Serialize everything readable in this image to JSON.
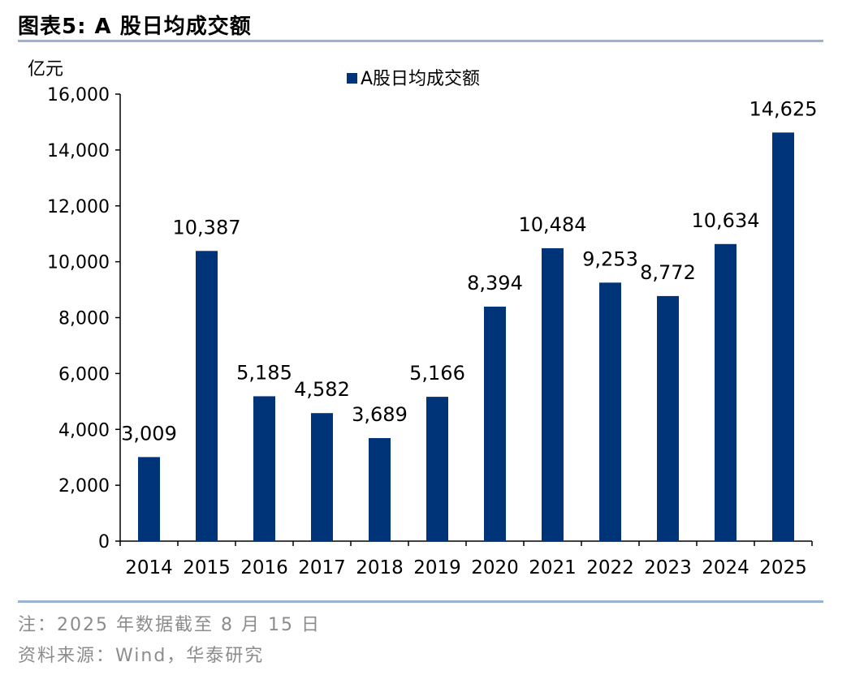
{
  "figure": {
    "title": "图表5:  A 股日均成交额"
  },
  "footer": {
    "note": "注：2025 年数据截至 8 月 15 日",
    "source": "资料来源：Wind，华泰研究"
  },
  "colors": {
    "bar": "#003478",
    "rule": "#9ab4cf",
    "axis": "#000000",
    "footer_text": "#8c8c8c"
  },
  "chart_data": {
    "type": "bar",
    "unit_label": "亿元",
    "categories": [
      "2014",
      "2015",
      "2016",
      "2017",
      "2018",
      "2019",
      "2020",
      "2021",
      "2022",
      "2023",
      "2024",
      "2025"
    ],
    "series": [
      {
        "name": "A股日均成交额",
        "values": [
          3009,
          10387,
          5185,
          4582,
          3689,
          5166,
          8394,
          10484,
          9253,
          8772,
          10634,
          14625
        ],
        "labels": [
          "3,009",
          "10,387",
          "5,185",
          "4,582",
          "3,689",
          "5,166",
          "8,394",
          "10,484",
          "9,253",
          "8,772",
          "10,634",
          "14,625"
        ]
      }
    ],
    "yticks": [
      "0",
      "2,000",
      "4,000",
      "6,000",
      "8,000",
      "10,000",
      "12,000",
      "14,000",
      "16,000"
    ],
    "ylim": [
      0,
      16000
    ],
    "grid": false,
    "legend_position": "top-center",
    "data_labels": true
  }
}
